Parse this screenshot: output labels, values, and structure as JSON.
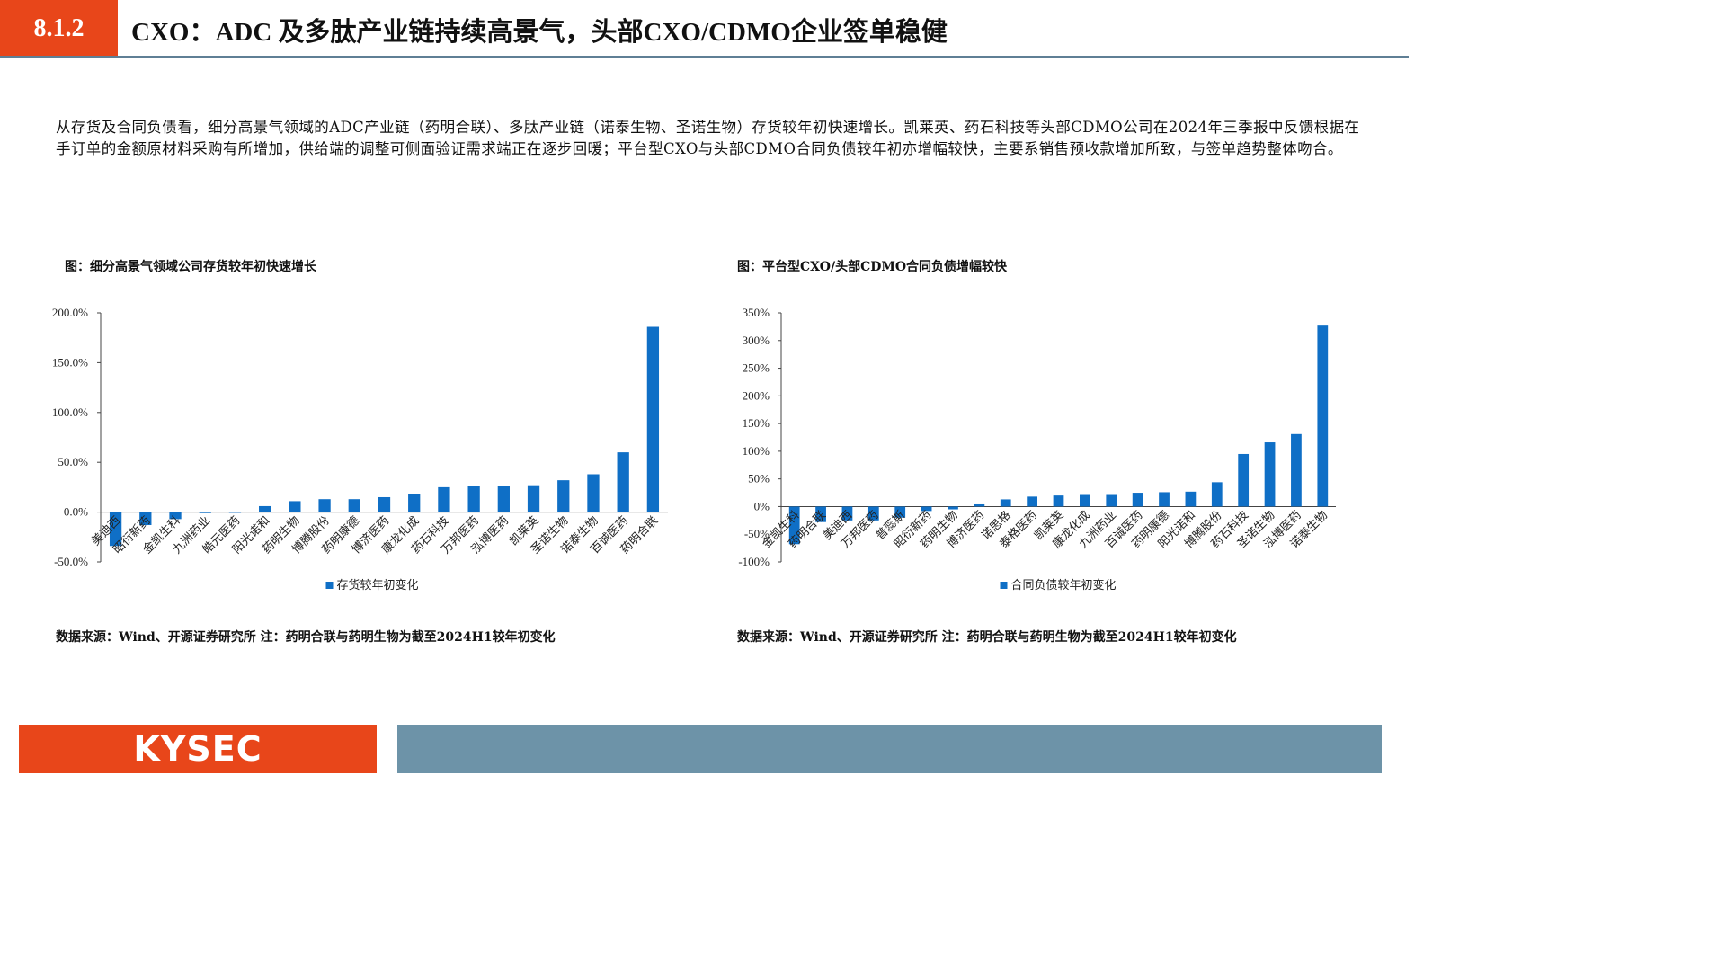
{
  "header": {
    "section_number": "8.1.2",
    "title": "CXO：ADC 及多肽产业链持续高景气，头部CXO/CDMO企业签单稳健"
  },
  "intro_text": "从存货及合同负债看，细分高景气领域的ADC产业链（药明合联）、多肽产业链（诺泰生物、圣诺生物）存货较年初快速增长。凯莱英、药石科技等头部CDMO公司在2024年三季报中反馈根据在手订单的金额原材料采购有所增加，供给端的调整可侧面验证需求端正在逐步回暖；平台型CXO与头部CDMO合同负债较年初亦增幅较快，主要系销售预收款增加所致，与签单趋势整体吻合。",
  "left_figure": {
    "caption": "图：细分高景气领域公司存货较年初快速增长",
    "source": "数据来源：Wind、开源证券研究所 注：药明合联与药明生物为截至2024H1较年初变化"
  },
  "right_figure": {
    "caption": "图：平台型CXO/头部CDMO合同负债增幅较快",
    "source": "数据来源：Wind、开源证券研究所 注：药明合联与药明生物为截至2024H1较年初变化"
  },
  "footer": {
    "logo_text": "KYSEC"
  },
  "colors": {
    "accent": "#e8461a",
    "bar": "#0f6fc6",
    "rule": "#5f7f95",
    "footer_bar": "#6d93a8"
  },
  "chart_data": [
    {
      "type": "bar",
      "categories": [
        "美迪西",
        "昭衍新药",
        "金凯生科",
        "九洲药业",
        "皓元医药",
        "阳光诺和",
        "药明生物",
        "博腾股份",
        "药明康德",
        "博济医药",
        "康龙化成",
        "药石科技",
        "万邦医药",
        "泓博医药",
        "凯莱英",
        "圣诺生物",
        "诺泰生物",
        "百诚医药",
        "药明合联"
      ],
      "series": [
        {
          "name": "存货较年初变化",
          "values": [
            -34,
            -13,
            -7,
            -1,
            -0.5,
            6,
            11,
            13,
            13,
            15,
            18,
            25,
            26,
            26,
            27,
            32,
            38,
            60,
            186
          ]
        }
      ],
      "ylim": [
        -50,
        200
      ],
      "yticks": [
        -50,
        0,
        50,
        100,
        150,
        200
      ],
      "ytick_labels": [
        "-50.0%",
        "0.0%",
        "50.0%",
        "100.0%",
        "150.0%",
        "200.0%"
      ],
      "legend": "bottom-center",
      "grid": false
    },
    {
      "type": "bar",
      "categories": [
        "金凯生科",
        "药明合联",
        "美迪西",
        "万邦医药",
        "普蕊斯",
        "昭衍新药",
        "药明生物",
        "博济医药",
        "诺思格",
        "泰格医药",
        "凯莱英",
        "康龙化成",
        "九洲药业",
        "百诚医药",
        "药明康德",
        "阳光诺和",
        "博腾股份",
        "药石科技",
        "圣诺生物",
        "泓博医药",
        "诺泰生物"
      ],
      "series": [
        {
          "name": "合同负债较年初变化",
          "values": [
            -68,
            -28,
            -25,
            -25,
            -20,
            -8,
            -5,
            4,
            13,
            18,
            20,
            21,
            21,
            25,
            26,
            27,
            44,
            95,
            116,
            131,
            327
          ]
        }
      ],
      "ylim": [
        -100,
        350
      ],
      "yticks": [
        -100,
        -50,
        0,
        50,
        100,
        150,
        200,
        250,
        300,
        350
      ],
      "ytick_labels": [
        "-100%",
        "-50%",
        "0%",
        "50%",
        "100%",
        "150%",
        "200%",
        "250%",
        "300%",
        "350%"
      ],
      "legend": "bottom-center",
      "grid": false
    }
  ]
}
